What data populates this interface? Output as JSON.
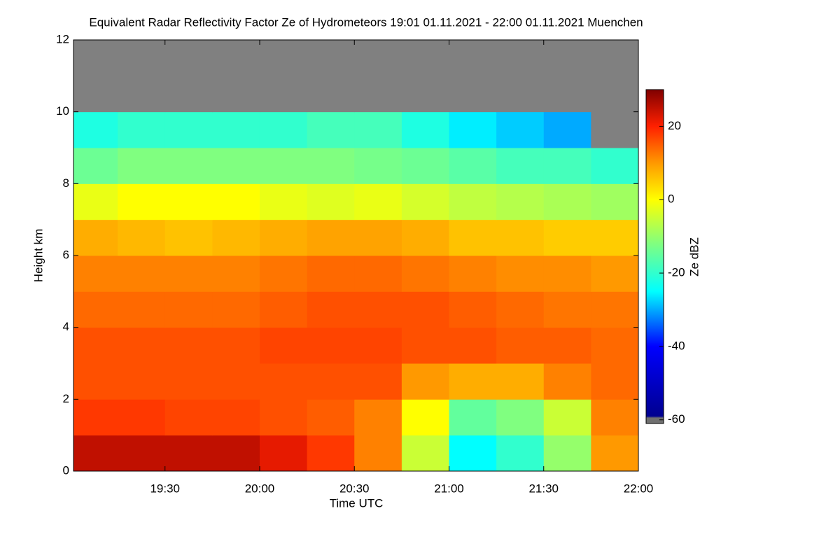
{
  "chart_data": {
    "type": "heatmap",
    "title": "Equivalent Radar Reflectivity Factor Ze of Hydrometeors   19:01 01.11.2021 - 22:00 01.11.2021 Muenchen",
    "xlabel": "Time UTC",
    "ylabel": "Height km",
    "colorbar_label": "Ze dBZ",
    "xlim": [
      "19:01",
      "22:00"
    ],
    "xticks": [
      "19:30",
      "20:00",
      "20:30",
      "21:00",
      "21:30",
      "22:00"
    ],
    "ylim": [
      0,
      12
    ],
    "yticks": [
      0,
      2,
      4,
      6,
      8,
      10,
      12
    ],
    "clim": [
      -61,
      30
    ],
    "cticks": [
      -60,
      -40,
      -20,
      0,
      20
    ],
    "missing_color": "#808080",
    "colorscale": [
      {
        "value": -61,
        "color": "#707070"
      },
      {
        "value": -59.5,
        "color": "#707070"
      },
      {
        "value": -59,
        "color": "#00008f"
      },
      {
        "value": -40,
        "color": "#0000ff"
      },
      {
        "value": -25,
        "color": "#00ffff"
      },
      {
        "value": -12,
        "color": "#80ff80"
      },
      {
        "value": 0,
        "color": "#ffff00"
      },
      {
        "value": 10,
        "color": "#ff9900"
      },
      {
        "value": 20,
        "color": "#ff2000"
      },
      {
        "value": 30,
        "color": "#800000"
      }
    ],
    "x_edges": [
      "19:01",
      "19:15",
      "19:30",
      "19:45",
      "20:00",
      "20:15",
      "20:30",
      "20:45",
      "21:00",
      "21:15",
      "21:30",
      "21:45",
      "22:00"
    ],
    "y_edges": [
      0,
      1,
      2,
      3,
      4,
      5,
      6,
      7,
      8,
      9,
      10,
      11,
      12
    ],
    "values": [
      [
        25,
        25,
        25,
        25,
        22,
        18,
        12,
        -5,
        -25,
        -20,
        -10,
        10
      ],
      [
        18,
        18,
        17,
        17,
        16,
        15,
        12,
        0,
        -15,
        -12,
        -5,
        12
      ],
      [
        16,
        16,
        16,
        16,
        16,
        16,
        16,
        10,
        8,
        8,
        12,
        14
      ],
      [
        16,
        16,
        16,
        16,
        17,
        17,
        17,
        16,
        16,
        15,
        15,
        14
      ],
      [
        14,
        14,
        14,
        14,
        15,
        16,
        16,
        16,
        15,
        14,
        13,
        13
      ],
      [
        12,
        12,
        12,
        12,
        13,
        14,
        14,
        13,
        12,
        11,
        11,
        10
      ],
      [
        8,
        7,
        6,
        7,
        8,
        9,
        9,
        8,
        6,
        6,
        5,
        5
      ],
      [
        -2,
        0,
        0,
        0,
        -2,
        -3,
        -2,
        -4,
        -6,
        -7,
        -8,
        -9
      ],
      [
        -14,
        -12,
        -12,
        -12,
        -12,
        -12,
        -13,
        -14,
        -16,
        -18,
        -18,
        -20
      ],
      [
        -22,
        -20,
        -20,
        -20,
        -20,
        -18,
        -18,
        -22,
        -26,
        -28,
        -30,
        null
      ],
      [
        null,
        null,
        null,
        null,
        null,
        null,
        null,
        null,
        null,
        null,
        null,
        null
      ],
      [
        null,
        null,
        null,
        null,
        null,
        null,
        null,
        null,
        null,
        null,
        null,
        null
      ]
    ]
  }
}
